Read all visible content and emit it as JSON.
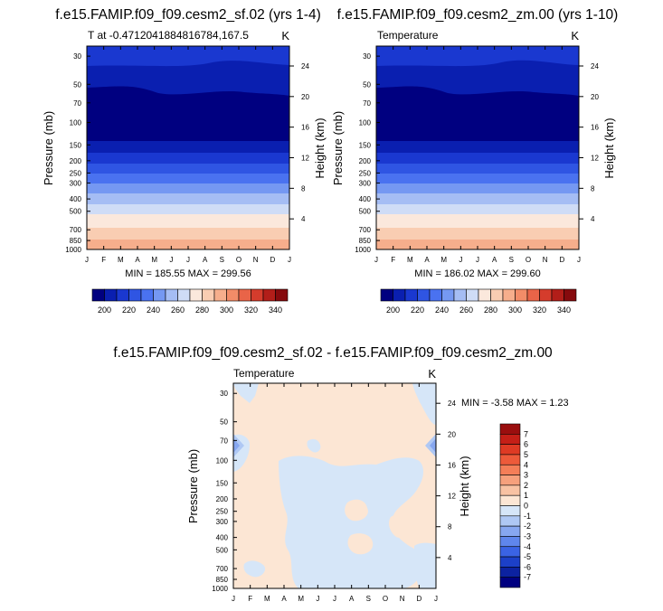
{
  "panels": [
    {
      "title": "f.e15.FAMIP.f09_f09.cesm2_sf.02 (yrs 1-4)",
      "left_label": "T at -0.4712041884816784,167.5",
      "units": "K",
      "ylabel": "Pressure (mb)",
      "y2label": "Height (km)",
      "minmax": "MIN = 185.55 MAX = 299.56"
    },
    {
      "title": "f.e15.FAMIP.f09_f09.cesm2_zm.00 (yrs 1-10)",
      "left_label": "Temperature",
      "units": "K",
      "ylabel": "Pressure (mb)",
      "y2label": "Height (km)",
      "minmax": "MIN = 186.02 MAX = 299.60"
    },
    {
      "title": "f.e15.FAMIP.f09_f09.cesm2_sf.02 - f.e15.FAMIP.f09_f09.cesm2_zm.00",
      "left_label": "Temperature",
      "units": "K",
      "ylabel": "Pressure (mb)",
      "y2label": "Height (km)",
      "minmax": "MIN =  -3.58 MAX =   1.23"
    }
  ],
  "chart_data": [
    {
      "type": "heatmap",
      "title": "f.e15.FAMIP.f09_f09.cesm2_sf.02 (yrs 1-4)",
      "xlabel": "",
      "ylabel": "Pressure (mb)",
      "y2label": "Height (km)",
      "x_ticks": [
        "J",
        "F",
        "M",
        "A",
        "M",
        "J",
        "J",
        "A",
        "S",
        "O",
        "N",
        "D",
        "J"
      ],
      "y_ticks": [
        30,
        50,
        70,
        100,
        150,
        200,
        250,
        300,
        400,
        500,
        700,
        850,
        1000
      ],
      "y_scale": "log",
      "y_reversed": true,
      "y2_ticks": [
        24,
        20,
        16,
        12,
        8,
        4
      ],
      "colorbar_labels": [
        "200",
        "220",
        "240",
        "260",
        "280",
        "300",
        "320",
        "340"
      ],
      "colorbar_colors": [
        "#000080",
        "#0a1fb0",
        "#1a38d0",
        "#2f55e3",
        "#4a72f0",
        "#7598f2",
        "#a5bdf4",
        "#cfdcf6",
        "#fbe8dc",
        "#f9cdb2",
        "#f6ae8c",
        "#f28c68",
        "#e96448",
        "#d53c2c",
        "#b21e19",
        "#860a0d"
      ],
      "series": [
        {
          "name": "",
          "pressure": [
            1000,
            850,
            700,
            500,
            400,
            300,
            250,
            200,
            150,
            100,
            70,
            50,
            30
          ],
          "values": [
            295,
            288,
            280,
            262,
            250,
            235,
            225,
            215,
            205,
            195,
            190,
            200,
            215
          ]
        }
      ]
    },
    {
      "type": "heatmap",
      "title": "f.e15.FAMIP.f09_f09.cesm2_zm.00 (yrs 1-10)",
      "xlabel": "",
      "ylabel": "Pressure (mb)",
      "y2label": "Height (km)",
      "x_ticks": [
        "J",
        "F",
        "M",
        "A",
        "M",
        "J",
        "J",
        "A",
        "S",
        "O",
        "N",
        "D",
        "J"
      ],
      "y_ticks": [
        30,
        50,
        70,
        100,
        150,
        200,
        250,
        300,
        400,
        500,
        700,
        850,
        1000
      ],
      "y_scale": "log",
      "y_reversed": true,
      "y2_ticks": [
        24,
        20,
        16,
        12,
        8,
        4
      ],
      "colorbar_labels": [
        "200",
        "220",
        "240",
        "260",
        "280",
        "300",
        "320",
        "340"
      ],
      "colorbar_colors": [
        "#000080",
        "#0a1fb0",
        "#1a38d0",
        "#2f55e3",
        "#4a72f0",
        "#7598f2",
        "#a5bdf4",
        "#cfdcf6",
        "#fbe8dc",
        "#f9cdb2",
        "#f6ae8c",
        "#f28c68",
        "#e96448",
        "#d53c2c",
        "#b21e19",
        "#860a0d"
      ],
      "series": [
        {
          "name": "",
          "pressure": [
            1000,
            850,
            700,
            500,
            400,
            300,
            250,
            200,
            150,
            100,
            70,
            50,
            30
          ],
          "values": [
            295,
            288,
            280,
            262,
            250,
            235,
            225,
            215,
            205,
            195,
            190,
            200,
            215
          ]
        }
      ]
    },
    {
      "type": "heatmap",
      "title": "f.e15.FAMIP.f09_f09.cesm2_sf.02 - f.e15.FAMIP.f09_f09.cesm2_zm.00",
      "xlabel": "",
      "ylabel": "Pressure (mb)",
      "y2label": "Height (km)",
      "x_ticks": [
        "J",
        "F",
        "M",
        "A",
        "M",
        "J",
        "J",
        "A",
        "S",
        "O",
        "N",
        "D",
        "J"
      ],
      "y_ticks": [
        30,
        50,
        70,
        100,
        150,
        200,
        250,
        300,
        400,
        500,
        700,
        850,
        1000
      ],
      "y_scale": "log",
      "y_reversed": true,
      "y2_ticks": [
        24,
        20,
        16,
        12,
        8,
        4
      ],
      "colorbar_labels": [
        "7",
        "6",
        "5",
        "4",
        "3",
        "2",
        "1",
        "0",
        "-1",
        "-2",
        "-3",
        "-4",
        "-5",
        "-6",
        "-7"
      ],
      "colorbar_colors": [
        "#9a0e0e",
        "#c41f17",
        "#de3a24",
        "#ed5a3a",
        "#f47e58",
        "#f6a07c",
        "#f8c2a3",
        "#fce6d4",
        "#d6e6f8",
        "#afc8f4",
        "#87a7f0",
        "#5f86ec",
        "#3a63e4",
        "#1c40c8",
        "#0c22a0",
        "#000080"
      ],
      "series": [
        {
          "name": "",
          "note_regions": [
            "positive ~0 to 1 (light peach) dominant",
            "negative ~0 to -1 (light blue) patches",
            "small -3 to -4 blue features near 70 mb at Jan edges"
          ]
        }
      ]
    }
  ]
}
